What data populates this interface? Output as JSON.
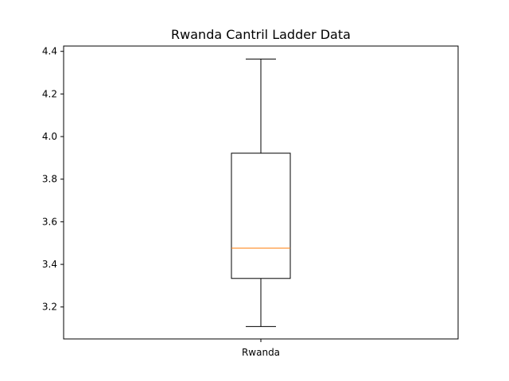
{
  "chart_data": {
    "type": "boxplot",
    "title": "Rwanda Cantril Ladder Data",
    "xlabel": "",
    "ylabel": "",
    "categories": [
      "Rwanda"
    ],
    "boxes": [
      {
        "name": "Rwanda",
        "whisker_low": 3.108,
        "q1": 3.334,
        "median": 3.476,
        "q3": 3.922,
        "whisker_high": 4.364
      }
    ],
    "ylim": [
      3.05,
      4.425
    ],
    "yticks": [
      3.2,
      3.4,
      3.6,
      3.8,
      4.0,
      4.2,
      4.4
    ],
    "ytick_labels": [
      "3.2",
      "3.4",
      "3.6",
      "3.8",
      "4.0",
      "4.2",
      "4.4"
    ],
    "grid": false,
    "colors": {
      "box": "#000000",
      "median": "#ff7f0e",
      "whisker": "#000000"
    }
  }
}
